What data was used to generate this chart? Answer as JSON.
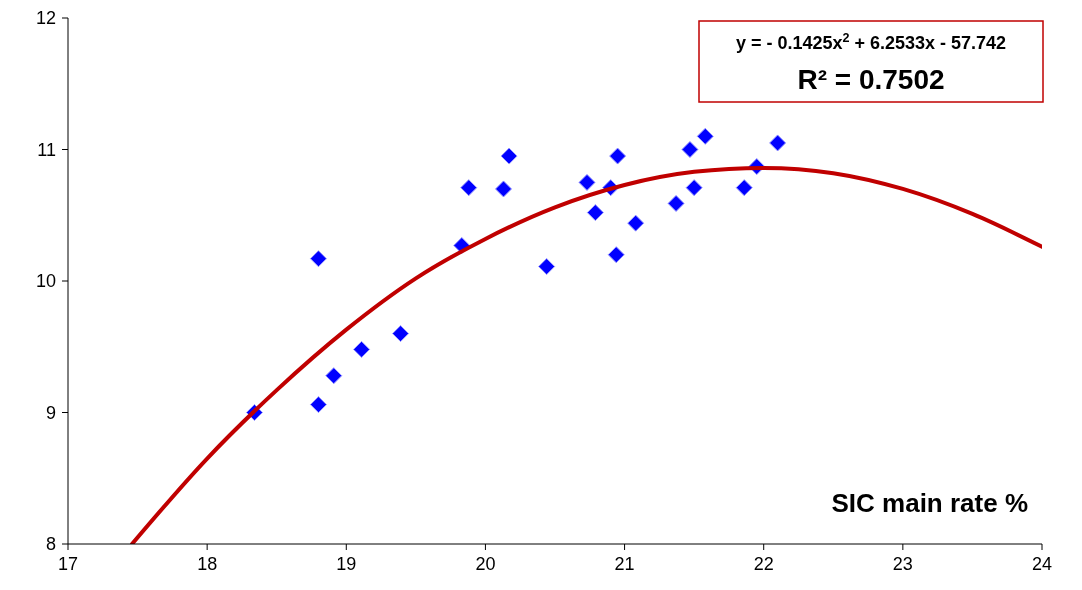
{
  "chart_data": {
    "type": "scatter",
    "xlabel": "SIC main rate %",
    "xlim": [
      17,
      24
    ],
    "xticks": [
      17,
      18,
      19,
      20,
      21,
      22,
      23,
      24
    ],
    "ylim": [
      8,
      12
    ],
    "yticks": [
      8,
      9,
      10,
      11,
      12
    ],
    "grid": false,
    "marker": "diamond",
    "annotations": [
      "y = - 0.1425x$^{2}$ + 6.2533x - 57.742",
      "R² = 0.7502"
    ],
    "series": [
      {
        "color": "#0000ff",
        "x": [
          18.34,
          18.8,
          18.8,
          18.91,
          19.11,
          19.39,
          19.83,
          19.88,
          20.13,
          20.17,
          20.44,
          20.73,
          20.79,
          20.9,
          20.95,
          20.94,
          21.08,
          21.37,
          21.47,
          21.5,
          21.58,
          21.86,
          21.95,
          22.1
        ],
        "values": [
          9.0,
          10.17,
          9.06,
          9.28,
          9.48,
          9.6,
          10.27,
          10.71,
          10.7,
          10.95,
          10.11,
          10.75,
          10.52,
          10.71,
          10.95,
          10.2,
          10.44,
          10.59,
          11.0,
          10.71,
          11.1,
          10.71,
          10.87,
          11.05
        ]
      },
      {
        "type": "line",
        "color": "#c00000",
        "marker": "none",
        "line_style": "solid",
        "x": [
          17.46,
          18,
          18.5,
          19,
          19.5,
          20,
          20.5,
          21,
          21.5,
          22,
          22.5,
          23,
          23.5,
          24
        ],
        "values": [
          8.0,
          8.65,
          9.17,
          9.63,
          10.02,
          10.32,
          10.56,
          10.73,
          10.83,
          10.86,
          10.82,
          10.7,
          10.51,
          10.26
        ]
      }
    ]
  }
}
